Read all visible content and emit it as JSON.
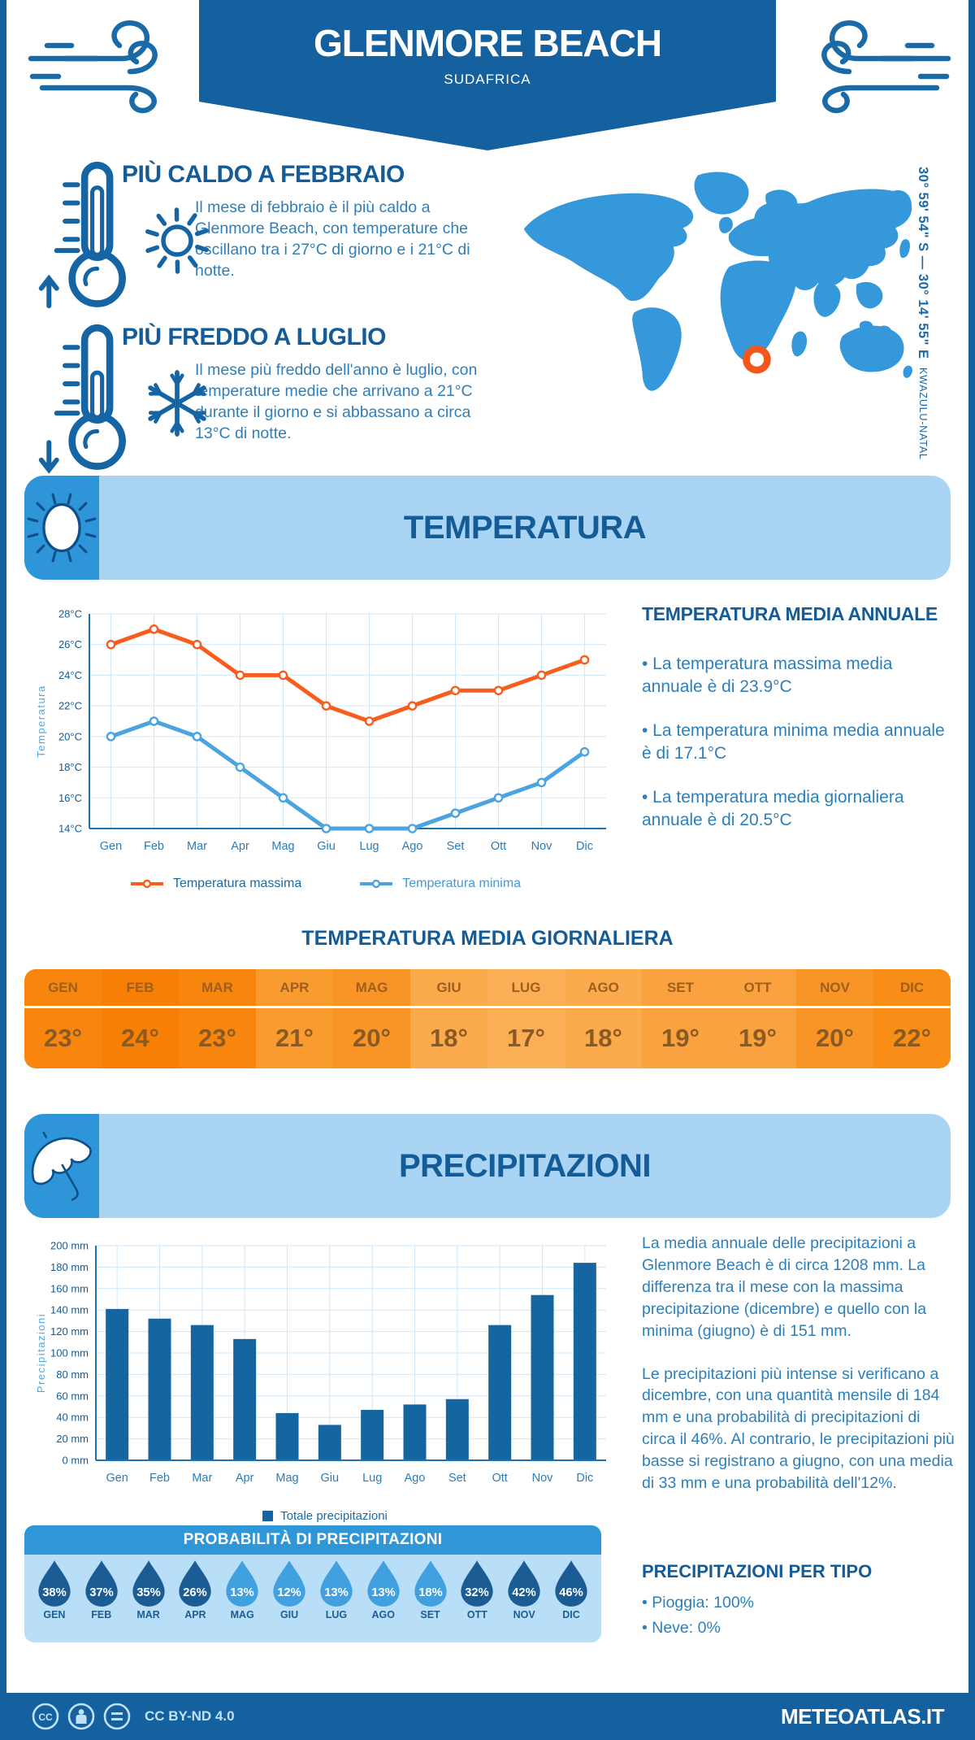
{
  "header": {
    "title": "GLENMORE BEACH",
    "subtitle": "SUDAFRICA",
    "banner_color": "#15609e"
  },
  "highlights": {
    "warm": {
      "title": "PIÙ CALDO A FEBBRAIO",
      "text": "Il mese di febbraio è il più caldo a Glenmore Beach, con temperature che oscillano tra i 27°C di giorno e i 21°C di notte."
    },
    "cold": {
      "title": "PIÙ FREDDO A LUGLIO",
      "text": "Il mese più freddo dell'anno è luglio, con temperature medie che arrivano a 21°C durante il giorno e si abbassano a circa 13°C di notte."
    }
  },
  "map": {
    "coordinates": "30° 59' 54\" S — 30° 14' 55\" E",
    "region": "KWAZULU-NATAL",
    "land_color": "#3498db",
    "marker_color": "#f4571c"
  },
  "temperature_section": {
    "banner_title": "TEMPERATURA",
    "annual_title": "TEMPERATURA MEDIA ANNUALE",
    "annual_bullets": [
      "• La temperatura massima media annuale è di 23.9°C",
      "• La temperatura minima media annuale è di 17.1°C",
      "• La temperatura media giornaliera annuale è di 20.5°C"
    ],
    "daily_title": "TEMPERATURA MEDIA GIORNALIERA",
    "daily_months": [
      "GEN",
      "FEB",
      "MAR",
      "APR",
      "MAG",
      "GIU",
      "LUG",
      "AGO",
      "SET",
      "OTT",
      "NOV",
      "DIC"
    ],
    "daily_values": [
      "23°",
      "24°",
      "23°",
      "21°",
      "20°",
      "18°",
      "17°",
      "18°",
      "19°",
      "19°",
      "20°",
      "22°"
    ],
    "daily_cell_colors": [
      "#f8860e",
      "#f87f06",
      "#f8860e",
      "#f99b2f",
      "#f99527",
      "#fbaa4c",
      "#fbae54",
      "#fbaa4c",
      "#faa23f",
      "#faa23f",
      "#f99527",
      "#f88d17"
    ]
  },
  "precipitation_section": {
    "banner_title": "PRECIPITAZIONI",
    "paragraphs": [
      "La media annuale delle precipitazioni a Glenmore Beach è di circa 1208 mm. La differenza tra il mese con la massima precipitazione (dicembre) e quello con la minima (giugno) è di 151 mm.",
      "Le precipitazioni più intense si verificano a dicembre, con una quantità mensile di 184 mm e una probabilità di precipitazioni di circa il 46%. Al contrario, le precipitazioni più basse si registrano a giugno, con una media di 33 mm e una probabilità dell'12%."
    ],
    "bar_legend": "Totale precipitazioni",
    "probability_title": "PROBABILITÀ DI PRECIPITAZIONI",
    "probability_months": [
      "GEN",
      "FEB",
      "MAR",
      "APR",
      "MAG",
      "GIU",
      "LUG",
      "AGO",
      "SET",
      "OTT",
      "NOV",
      "DIC"
    ],
    "probability_values": [
      "38%",
      "37%",
      "35%",
      "26%",
      "13%",
      "12%",
      "13%",
      "13%",
      "18%",
      "32%",
      "42%",
      "46%"
    ],
    "probability_colors": [
      "#1c5c94",
      "#1c5c94",
      "#1c5c94",
      "#1c5c94",
      "#41a1e0",
      "#41a1e0",
      "#41a1e0",
      "#41a1e0",
      "#41a1e0",
      "#1c5c94",
      "#1c5c94",
      "#1c5c94"
    ],
    "types_title": "PRECIPITAZIONI PER TIPO",
    "types_bullets": [
      "• Pioggia: 100%",
      "• Neve: 0%"
    ]
  },
  "chart_data": [
    {
      "type": "line",
      "categories": [
        "Gen",
        "Feb",
        "Mar",
        "Apr",
        "Mag",
        "Giu",
        "Lug",
        "Ago",
        "Set",
        "Ott",
        "Nov",
        "Dic"
      ],
      "series": [
        {
          "name": "Temperatura massima",
          "color": "#f95d1d",
          "values": [
            26,
            27,
            26,
            24,
            24,
            22,
            21,
            22,
            23,
            23,
            24,
            25
          ]
        },
        {
          "name": "Temperatura minima",
          "color": "#4ba3e0",
          "values": [
            20,
            21,
            20,
            18,
            16,
            14,
            14,
            14,
            15,
            16,
            17,
            19
          ]
        }
      ],
      "title": "",
      "xlabel": "",
      "ylabel": "Temperatura",
      "ylim": [
        14,
        28
      ],
      "ytick_step": 2,
      "ytick_suffix": "°C",
      "grid": true,
      "legend_position": "bottom"
    },
    {
      "type": "bar",
      "categories": [
        "Gen",
        "Feb",
        "Mar",
        "Apr",
        "Mag",
        "Giu",
        "Lug",
        "Ago",
        "Set",
        "Ott",
        "Nov",
        "Dic"
      ],
      "series": [
        {
          "name": "Totale precipitazioni",
          "color": "#1565a0",
          "values": [
            141,
            132,
            126,
            113,
            44,
            33,
            47,
            52,
            57,
            126,
            154,
            184
          ]
        }
      ],
      "title": "",
      "xlabel": "",
      "ylabel": "Precipitazioni",
      "ylim": [
        0,
        200
      ],
      "ytick_step": 20,
      "ytick_suffix": " mm",
      "grid": true,
      "legend_position": "bottom"
    }
  ],
  "footer": {
    "license": "CC BY-ND 4.0",
    "site": "METEOATLAS.IT"
  }
}
